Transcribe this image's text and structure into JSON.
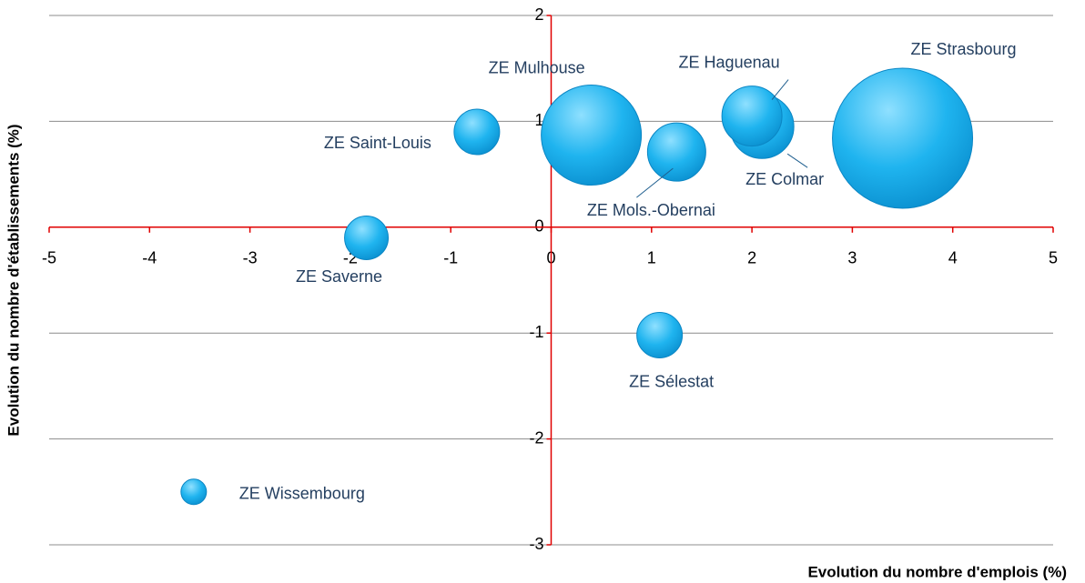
{
  "chart_data": {
    "type": "bubble",
    "x_label": "Evolution du nombre d'emplois (%)",
    "y_label": "Evolution du nombre d'établissements (%)",
    "labels": [
      "ZE Strasbourg",
      "ZE Mulhouse",
      "ZE Colmar",
      "ZE Haguenau",
      "ZE Mols.-Obernai",
      "ZE Saint-Louis",
      "ZE Saverne",
      "ZE Sélestat",
      "ZE Wissembourg"
    ],
    "x": [
      3.5,
      0.4,
      2.1,
      2.0,
      1.25,
      -0.74,
      -1.84,
      1.08,
      -3.56
    ],
    "values": [
      0.84,
      0.87,
      0.95,
      1.05,
      0.71,
      0.9,
      -0.1,
      -1.02,
      -2.5
    ],
    "sizes": [
      5929,
      3025,
      1225,
      1089,
      1024,
      625,
      576,
      625,
      196
    ],
    "color": "#1fa9e6",
    "xlim": [
      -5,
      5
    ],
    "ylim": [
      -3,
      2
    ],
    "xticks": [
      -5,
      -4,
      -3,
      -2,
      -1,
      0,
      1,
      2,
      3,
      4,
      5
    ],
    "yticks": [
      -3,
      -2,
      -1,
      0,
      1,
      2
    ],
    "grid": true
  }
}
